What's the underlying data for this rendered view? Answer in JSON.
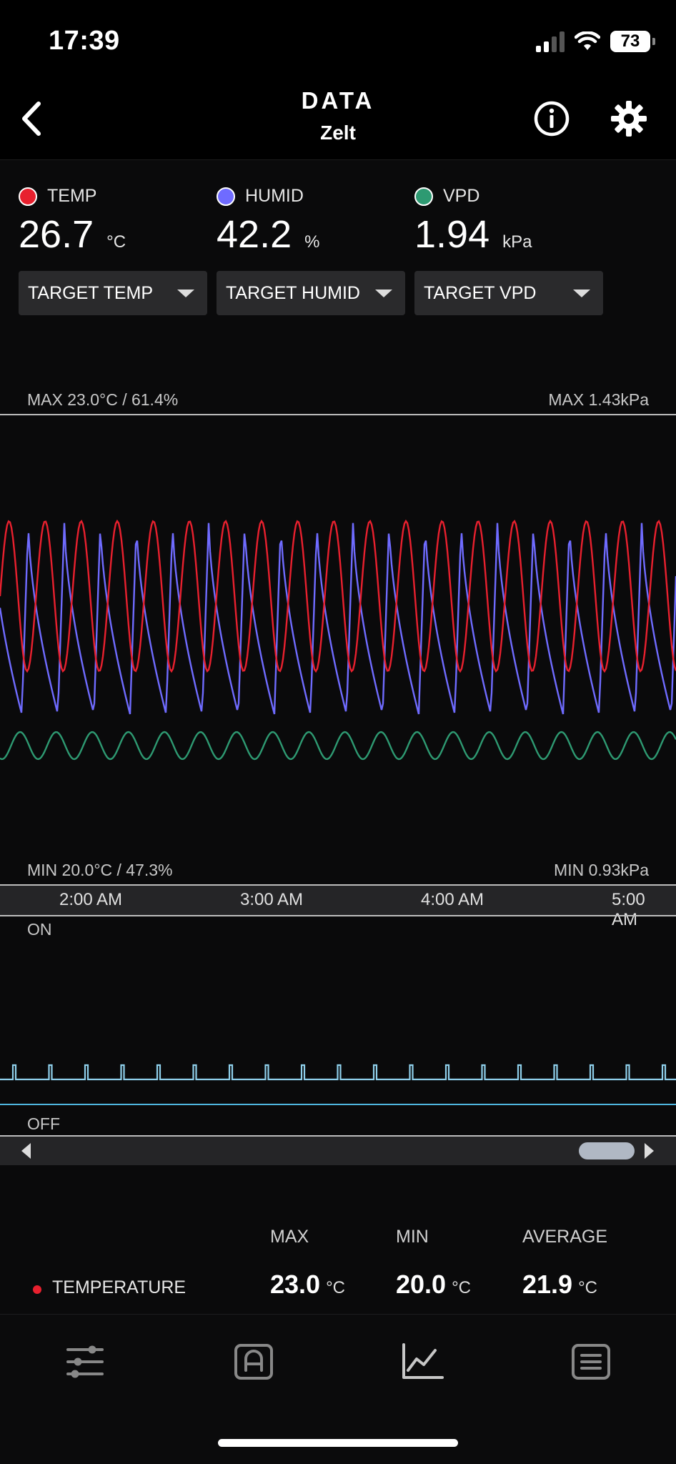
{
  "status": {
    "time": "17:39",
    "battery": "73"
  },
  "nav": {
    "title": "DATA",
    "subtitle": "Zelt",
    "back_icon": "chevron-left-icon",
    "info_icon": "info-icon",
    "settings_icon": "gear-icon"
  },
  "colors": {
    "temp": "#e8202e",
    "humid": "#6f6bff",
    "vpd": "#2e9a72",
    "device": "#8fd0ec"
  },
  "metrics": [
    {
      "label": "TEMP",
      "value": "26.7",
      "unit": "°C"
    },
    {
      "label": "HUMID",
      "value": "42.2",
      "unit": "%"
    },
    {
      "label": "VPD",
      "value": "1.94",
      "unit": "kPa"
    }
  ],
  "dropdowns": [
    "TARGET TEMP",
    "TARGET HUMID",
    "TARGET VPD"
  ],
  "chart": {
    "max_left": "MAX 23.0°C / 61.4%",
    "max_right": "MAX 1.43kPa",
    "min_left": "MIN 20.0°C / 47.3%",
    "min_right": "MIN 0.93kPa",
    "time_ticks": [
      "2:00 AM",
      "3:00 AM",
      "4:00 AM",
      "5:00 AM"
    ],
    "on_label": "ON",
    "off_label": "OFF"
  },
  "stats": {
    "headers": [
      "MAX",
      "MIN",
      "AVERAGE"
    ],
    "row_label": "TEMPERATURE",
    "max": "23.0",
    "min": "20.0",
    "avg": "21.9",
    "unit": "°C"
  },
  "tabs": [
    "sliders-icon",
    "auto-mode-icon",
    "chart-icon",
    "list-icon"
  ]
}
